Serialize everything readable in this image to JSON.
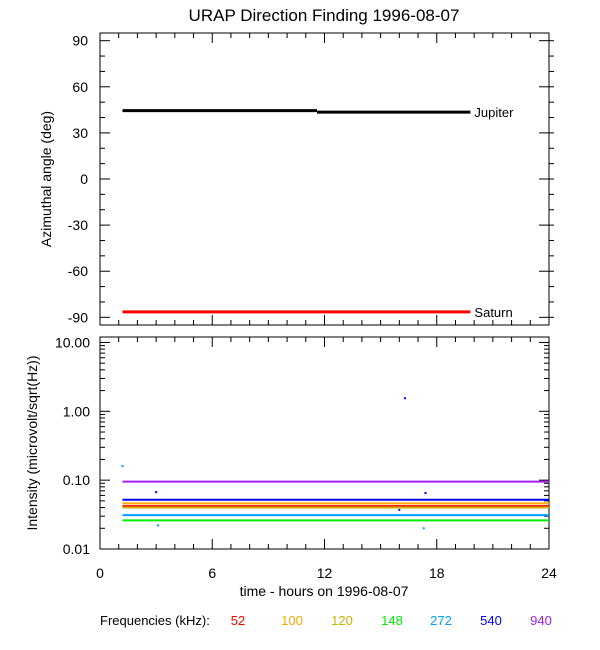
{
  "chart_data": [
    {
      "type": "line",
      "title": "URAP Direction Finding  1996-08-07",
      "xlabel": "",
      "ylabel": "Azimuthal angle (deg)",
      "xlim": [
        0,
        24
      ],
      "ylim": [
        -95,
        95
      ],
      "x_ticks": [
        0,
        6,
        12,
        18,
        24
      ],
      "y_ticks": [
        90,
        60,
        30,
        0,
        -30,
        -60,
        -90
      ],
      "y_tick_labels": [
        "90",
        "60",
        "30",
        "0",
        "-30",
        "-60",
        "-90"
      ],
      "series": [
        {
          "name": "Jupiter",
          "color": "#000000",
          "segments": [
            {
              "x": [
                1.2,
                11.6
              ],
              "y": [
                44.5,
                44.5
              ]
            },
            {
              "x": [
                11.6,
                19.8
              ],
              "y": [
                43.5,
                43.5
              ]
            }
          ]
        },
        {
          "name": "Saturn",
          "color": "#ff0000",
          "segments": [
            {
              "x": [
                1.2,
                19.8
              ],
              "y": [
                -86.5,
                -86.5
              ]
            }
          ]
        }
      ]
    },
    {
      "type": "line",
      "title": "",
      "xlabel": "time - hours on 1996-08-07",
      "ylabel": "Intensity (microvolt/sqrt(Hz))",
      "xlim": [
        0,
        24
      ],
      "ylim": [
        0.01,
        12
      ],
      "yscale": "log",
      "x_ticks": [
        0,
        6,
        12,
        18,
        24
      ],
      "x_tick_labels": [
        "0",
        "6",
        "12",
        "18",
        "24"
      ],
      "y_ticks": [
        10,
        1,
        0.1,
        0.01
      ],
      "y_tick_labels": [
        "10.00",
        "1.00",
        "0.10",
        "0.01"
      ],
      "series": [
        {
          "freq": "52",
          "color": "#ff0000",
          "x": [
            1.2,
            24
          ],
          "y": [
            0.042,
            0.042
          ]
        },
        {
          "freq": "100",
          "color": "#ffa500",
          "x": [
            1.2,
            24
          ],
          "y": [
            0.046,
            0.046
          ]
        },
        {
          "freq": "120",
          "color": "#c8b400",
          "x": [
            1.2,
            24
          ],
          "y": [
            0.04,
            0.04
          ]
        },
        {
          "freq": "148",
          "color": "#00ee00",
          "x": [
            1.2,
            24
          ],
          "y": [
            0.026,
            0.026
          ]
        },
        {
          "freq": "272",
          "color": "#00a0ff",
          "x": [
            1.2,
            24
          ],
          "y": [
            0.031,
            0.031
          ]
        },
        {
          "freq": "540",
          "color": "#0000ff",
          "x": [
            1.2,
            24
          ],
          "y": [
            0.052,
            0.052
          ]
        },
        {
          "freq": "940",
          "color": "#a020f0",
          "x": [
            1.2,
            24
          ],
          "y": [
            0.095,
            0.095
          ]
        }
      ],
      "points": [
        {
          "x": 16.3,
          "y": 1.55,
          "color": "#0000ff"
        },
        {
          "x": 1.2,
          "y": 0.16,
          "color": "#00a0ff"
        },
        {
          "x": 3.0,
          "y": 0.067,
          "color": "#0000ff"
        },
        {
          "x": 17.4,
          "y": 0.065,
          "color": "#0000ff"
        },
        {
          "x": 16.0,
          "y": 0.037,
          "color": "#0000ff"
        },
        {
          "x": 17.3,
          "y": 0.02,
          "color": "#00a0ff"
        },
        {
          "x": 3.1,
          "y": 0.022,
          "color": "#00a0ff"
        }
      ]
    }
  ],
  "legend": {
    "title": "Frequencies (kHz):",
    "items": [
      {
        "label": "52",
        "color": "#ff0000"
      },
      {
        "label": "100",
        "color": "#ffa500"
      },
      {
        "label": "120",
        "color": "#c8b400"
      },
      {
        "label": "148",
        "color": "#00ee00"
      },
      {
        "label": "272",
        "color": "#00a0ff"
      },
      {
        "label": "540",
        "color": "#0000ff"
      },
      {
        "label": "940",
        "color": "#a020f0"
      }
    ]
  }
}
